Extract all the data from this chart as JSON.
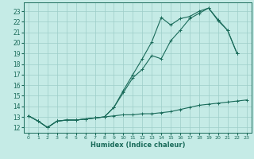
{
  "xlabel": "Humidex (Indice chaleur)",
  "xlim": [
    -0.5,
    23.5
  ],
  "ylim": [
    11.5,
    23.8
  ],
  "yticks": [
    12,
    13,
    14,
    15,
    16,
    17,
    18,
    19,
    20,
    21,
    22,
    23
  ],
  "xticks": [
    0,
    1,
    2,
    3,
    4,
    5,
    6,
    7,
    8,
    9,
    10,
    11,
    12,
    13,
    14,
    15,
    16,
    17,
    18,
    19,
    20,
    21,
    22,
    23
  ],
  "bg_color": "#c5ebe6",
  "grid_color": "#9dcec9",
  "line_color": "#1a6b5a",
  "line1_x": [
    0,
    1,
    2,
    3,
    4,
    5,
    6,
    7,
    8,
    9,
    10,
    11,
    12,
    13,
    14,
    15,
    16,
    17,
    18,
    19,
    20,
    21,
    22
  ],
  "line1_y": [
    13.1,
    12.6,
    12.0,
    12.6,
    12.7,
    12.7,
    12.8,
    12.9,
    13.0,
    13.9,
    15.5,
    17.0,
    18.5,
    20.1,
    22.4,
    21.7,
    22.3,
    22.5,
    23.0,
    23.3,
    22.1,
    21.2,
    19.0
  ],
  "line2_x": [
    0,
    1,
    2,
    3,
    4,
    5,
    6,
    7,
    8,
    9,
    10,
    11,
    12,
    13,
    14,
    15,
    16,
    17,
    18,
    19,
    20,
    21,
    22,
    23
  ],
  "line2_y": [
    13.1,
    12.6,
    12.0,
    12.6,
    12.7,
    12.7,
    12.8,
    12.9,
    13.0,
    13.1,
    13.2,
    13.2,
    13.3,
    13.3,
    13.4,
    13.5,
    13.7,
    13.9,
    14.1,
    14.2,
    14.3,
    14.4,
    14.5,
    14.6
  ],
  "line3_x": [
    0,
    1,
    2,
    3,
    4,
    5,
    6,
    7,
    8,
    9,
    10,
    11,
    12,
    13,
    14,
    15,
    16,
    17,
    18,
    19,
    20,
    21,
    22
  ],
  "line3_y": [
    13.1,
    12.6,
    12.0,
    12.6,
    12.7,
    12.7,
    12.8,
    12.9,
    13.0,
    13.9,
    15.3,
    16.7,
    17.5,
    18.8,
    18.5,
    20.2,
    21.2,
    22.3,
    22.8,
    23.3,
    22.2,
    21.2,
    19.0
  ]
}
